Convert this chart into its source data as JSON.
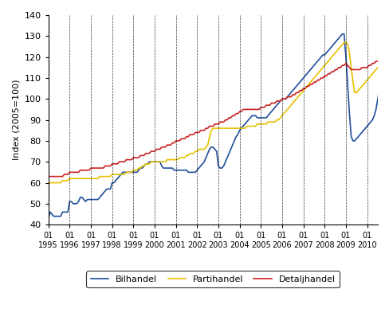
{
  "ylabel": "Index (2005=100)",
  "ylim": [
    40,
    140
  ],
  "yticks": [
    40,
    50,
    60,
    70,
    80,
    90,
    100,
    110,
    120,
    130,
    140
  ],
  "years": [
    1995,
    1996,
    1997,
    1998,
    1999,
    2000,
    2001,
    2002,
    2003,
    2004,
    2005,
    2006,
    2007,
    2008,
    2009,
    2010
  ],
  "colors": {
    "Bilhandel": "#1f4e9a",
    "Partihandel": "#e8c000",
    "Detaljhandel": "#cc2222"
  },
  "start_year": 1995,
  "bilhandel": [
    43,
    46,
    45,
    44,
    44,
    44,
    44,
    44,
    46,
    46,
    46,
    46,
    51,
    51,
    50,
    50,
    50,
    51,
    53,
    53,
    52,
    51,
    52,
    52,
    52,
    52,
    52,
    52,
    52,
    53,
    54,
    55,
    56,
    57,
    57,
    57,
    60,
    60,
    61,
    62,
    63,
    64,
    65,
    65,
    65,
    65,
    65,
    65,
    65,
    65,
    65,
    66,
    67,
    67,
    68,
    69,
    69,
    70,
    70,
    70,
    70,
    70,
    70,
    70,
    68,
    67,
    67,
    67,
    67,
    67,
    67,
    66,
    66,
    66,
    66,
    66,
    66,
    66,
    66,
    65,
    65,
    65,
    65,
    65,
    66,
    67,
    68,
    69,
    70,
    72,
    74,
    76,
    77,
    77,
    76,
    75,
    68,
    67,
    67,
    68,
    70,
    72,
    74,
    76,
    78,
    80,
    82,
    83,
    85,
    86,
    87,
    88,
    89,
    90,
    91,
    92,
    92,
    92,
    91,
    91,
    91,
    91,
    91,
    91,
    92,
    93,
    94,
    95,
    96,
    97,
    98,
    99,
    100,
    100,
    100,
    101,
    102,
    103,
    104,
    105,
    106,
    107,
    108,
    109,
    110,
    111,
    112,
    113,
    114,
    115,
    116,
    117,
    118,
    119,
    120,
    121,
    121,
    122,
    123,
    124,
    125,
    126,
    127,
    128,
    129,
    130,
    131,
    131,
    120,
    107,
    93,
    82,
    80,
    80,
    81,
    82,
    83,
    84,
    85,
    86,
    87,
    88,
    89,
    90,
    92,
    95,
    100,
    105
  ],
  "partihandel": [
    59,
    60,
    60,
    60,
    60,
    60,
    60,
    60,
    61,
    61,
    61,
    61,
    62,
    62,
    62,
    62,
    62,
    62,
    62,
    62,
    62,
    62,
    62,
    62,
    62,
    62,
    62,
    62,
    62,
    63,
    63,
    63,
    63,
    63,
    63,
    63,
    64,
    64,
    64,
    64,
    64,
    64,
    64,
    64,
    65,
    65,
    65,
    65,
    66,
    66,
    66,
    67,
    67,
    68,
    68,
    69,
    69,
    69,
    70,
    70,
    70,
    70,
    70,
    70,
    70,
    70,
    70,
    71,
    71,
    71,
    71,
    71,
    71,
    71,
    72,
    72,
    72,
    72,
    73,
    73,
    74,
    74,
    74,
    75,
    75,
    76,
    76,
    76,
    76,
    77,
    78,
    82,
    85,
    86,
    86,
    86,
    86,
    86,
    86,
    86,
    86,
    86,
    86,
    86,
    86,
    86,
    86,
    86,
    86,
    86,
    86,
    86,
    87,
    87,
    87,
    87,
    87,
    87,
    88,
    88,
    88,
    88,
    88,
    88,
    89,
    89,
    89,
    89,
    89,
    90,
    90,
    91,
    92,
    93,
    94,
    95,
    96,
    97,
    98,
    99,
    100,
    101,
    102,
    103,
    104,
    105,
    106,
    107,
    108,
    109,
    110,
    111,
    112,
    113,
    114,
    115,
    116,
    117,
    118,
    119,
    120,
    121,
    122,
    123,
    124,
    125,
    126,
    127,
    127,
    126,
    122,
    115,
    108,
    103,
    103,
    104,
    105,
    106,
    107,
    108,
    109,
    110,
    111,
    112,
    113,
    114,
    115,
    116
  ],
  "detaljhandel": [
    63,
    63,
    63,
    63,
    63,
    63,
    63,
    63,
    63,
    64,
    64,
    64,
    65,
    65,
    65,
    65,
    65,
    65,
    66,
    66,
    66,
    66,
    66,
    66,
    67,
    67,
    67,
    67,
    67,
    67,
    67,
    67,
    68,
    68,
    68,
    68,
    69,
    69,
    69,
    69,
    70,
    70,
    70,
    70,
    71,
    71,
    71,
    71,
    72,
    72,
    72,
    72,
    73,
    73,
    73,
    74,
    74,
    74,
    75,
    75,
    75,
    76,
    76,
    76,
    77,
    77,
    77,
    78,
    78,
    78,
    79,
    79,
    80,
    80,
    80,
    81,
    81,
    81,
    82,
    82,
    83,
    83,
    83,
    84,
    84,
    84,
    85,
    85,
    85,
    86,
    86,
    87,
    87,
    87,
    88,
    88,
    88,
    89,
    89,
    89,
    90,
    90,
    91,
    91,
    92,
    92,
    93,
    93,
    94,
    94,
    95,
    95,
    95,
    95,
    95,
    95,
    95,
    95,
    95,
    95,
    96,
    96,
    96,
    97,
    97,
    97,
    98,
    98,
    98,
    99,
    99,
    99,
    100,
    100,
    100,
    101,
    101,
    101,
    102,
    102,
    103,
    103,
    104,
    104,
    105,
    105,
    106,
    106,
    107,
    107,
    108,
    108,
    109,
    109,
    110,
    110,
    111,
    111,
    112,
    112,
    113,
    113,
    114,
    114,
    115,
    115,
    116,
    116,
    117,
    116,
    115,
    114,
    114,
    114,
    114,
    114,
    114,
    115,
    115,
    115,
    115,
    116,
    116,
    117,
    117,
    118,
    118,
    119
  ]
}
